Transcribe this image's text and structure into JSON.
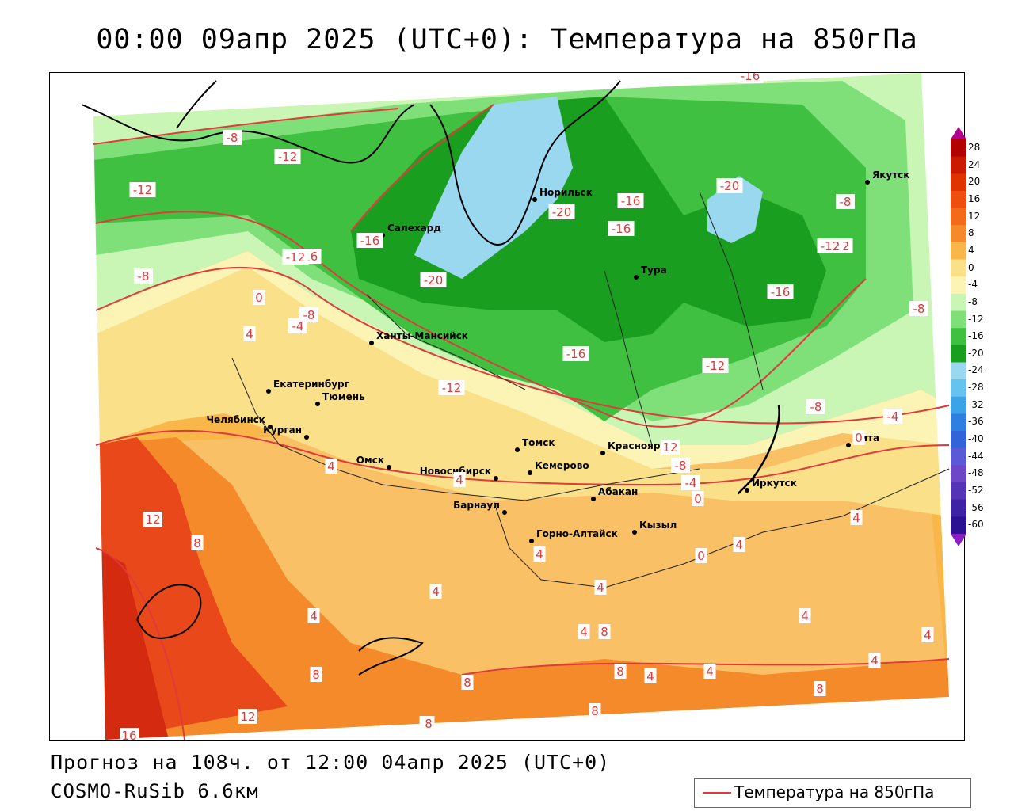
{
  "title": "00:00 09апр 2025 (UTC+0): Температура на 850гПа",
  "footer": {
    "forecast": "Прогноз на 108ч. от 12:00 04апр 2025 (UTC+0)",
    "model": "COSMO-RuSib 6.6км"
  },
  "legend": {
    "label": "Температура на 850гПа",
    "line_color": "#e03a3a"
  },
  "colorbar": {
    "labels": [
      "28",
      "24",
      "20",
      "16",
      "12",
      "8",
      "4",
      "0",
      "-4",
      "-8",
      "-12",
      "-16",
      "-20",
      "-24",
      "-28",
      "-32",
      "-36",
      "-40",
      "-44",
      "-48",
      "-52",
      "-56",
      "-60"
    ],
    "colors": [
      "#b30000",
      "#cc1a00",
      "#e03300",
      "#f04d10",
      "#f26a1a",
      "#f58a2a",
      "#f9b74a",
      "#fbe08a",
      "#fbf4b5",
      "#c9f5b5",
      "#7fe07a",
      "#40c040",
      "#1a9e20",
      "#9ad8f0",
      "#66c2ee",
      "#3da3e8",
      "#2e7fe0",
      "#3363d9",
      "#5a5ad6",
      "#6e47c8",
      "#5433b5",
      "#3d22a3",
      "#2a1290"
    ],
    "top_color": "#b3008f",
    "bottom_color": "#8a1fc8"
  },
  "cities": [
    {
      "name": "Салехард"
    },
    {
      "name": "Норильск"
    },
    {
      "name": "Якутск"
    },
    {
      "name": "Тура"
    },
    {
      "name": "Ханты-Мансийск"
    },
    {
      "name": "Екатеринбург"
    },
    {
      "name": "Тюмень"
    },
    {
      "name": "Челябинск"
    },
    {
      "name": "Курган"
    },
    {
      "name": "Омск"
    },
    {
      "name": "Новосибирск"
    },
    {
      "name": "Томск"
    },
    {
      "name": "Кемерово"
    },
    {
      "name": "Красноярск"
    },
    {
      "name": "Барнаул"
    },
    {
      "name": "Абакан"
    },
    {
      "name": "Иркутск"
    },
    {
      "name": "Чита"
    },
    {
      "name": "Горно-Алтайск"
    },
    {
      "name": "Кызыл"
    }
  ],
  "isotherm_labels": [
    "-16",
    "-8",
    "-12",
    "-12",
    "-20",
    "-16",
    "-20",
    "-16",
    "-16",
    "-8",
    "-12",
    "-20",
    "-16",
    "-12",
    "-8",
    "-12",
    "-8",
    "0",
    "-8",
    "-4",
    "4",
    "-16",
    "-16",
    "-12",
    "-12",
    "-8",
    "-4",
    "0",
    "12",
    "-8",
    "-4",
    "0",
    "4",
    "4",
    "4",
    "12",
    "8",
    "4",
    "4",
    "4",
    "0",
    "4",
    "4",
    "4",
    "4",
    "8",
    "4",
    "8",
    "4",
    "8",
    "8",
    "4",
    "4",
    "8",
    "8",
    "12",
    "8",
    "8",
    "16"
  ]
}
